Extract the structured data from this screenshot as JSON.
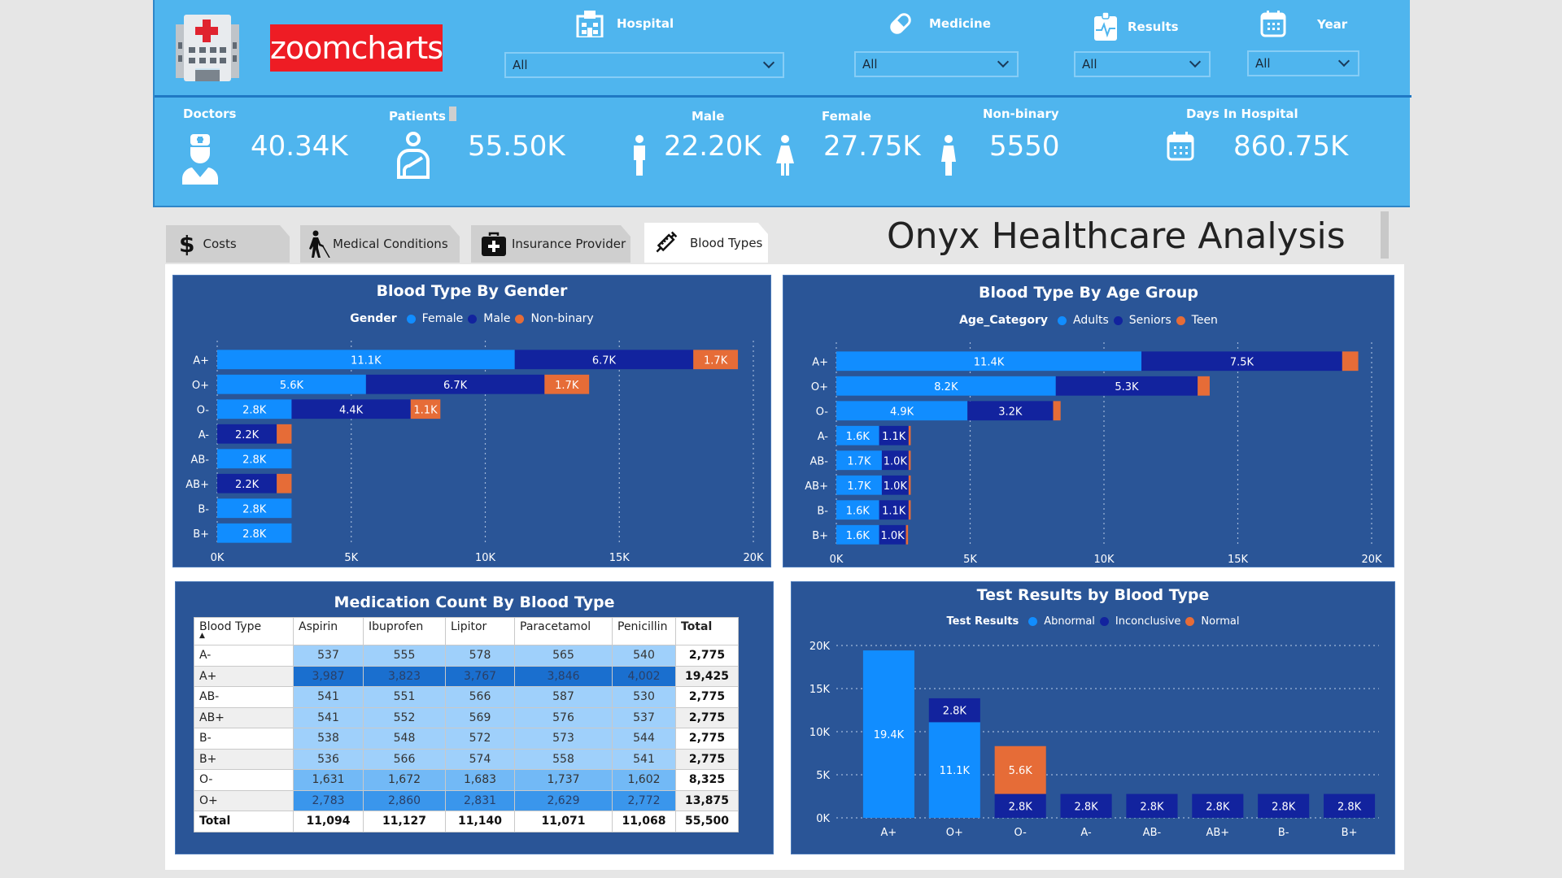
{
  "header": {
    "logo_text": "zoomcharts",
    "filters": [
      {
        "label": "Hospital",
        "icon": "hospital-icon",
        "value": "All"
      },
      {
        "label": "Medicine",
        "icon": "pill-icon",
        "value": "All"
      },
      {
        "label": "Results",
        "icon": "clipboard-pulse-icon",
        "value": "All"
      },
      {
        "label": "Year",
        "icon": "calendar-icon",
        "value": "All"
      }
    ],
    "kpis": {
      "doctors": {
        "label": "Doctors",
        "value": "40.34K"
      },
      "patients": {
        "label": "Patients",
        "value": "55.50K"
      },
      "male": {
        "label": "Male",
        "value": "22.20K"
      },
      "female": {
        "label": "Female",
        "value": "27.75K"
      },
      "nonbinary": {
        "label": "Non-binary",
        "value": "5550"
      },
      "days": {
        "label": "Days In Hospital",
        "value": "860.75K"
      }
    }
  },
  "tabs": [
    {
      "label": "Costs",
      "icon": "dollar-icon",
      "active": false
    },
    {
      "label": "Medical Conditions",
      "icon": "person-with-cane-icon",
      "active": false
    },
    {
      "label": "Insurance Provider",
      "icon": "medical-bag-icon",
      "active": false
    },
    {
      "label": "Blood Types",
      "icon": "syringe-icon",
      "active": true
    }
  ],
  "page_title": "Onyx Healthcare Analysis",
  "colors": {
    "light_blue": "#118dff",
    "dark_blue": "#12239e",
    "orange": "#e66c37",
    "panel_bg": "#2a5597",
    "header_bg": "#4fb5ee"
  },
  "chart_data": [
    {
      "type": "bar",
      "orientation": "horizontal-stacked",
      "title": "Blood Type By Gender",
      "legend_title": "Gender",
      "legend_position": "top-center",
      "categories": [
        "A+",
        "O+",
        "O-",
        "A-",
        "AB-",
        "AB+",
        "B-",
        "B+"
      ],
      "series": [
        {
          "name": "Female",
          "color": "#118dff",
          "values": [
            11100,
            5550,
            2775,
            0,
            2775,
            0,
            2775,
            2775
          ],
          "labels": [
            "11.1K",
            "5.6K",
            "2.8K",
            "",
            "2.8K",
            "",
            "2.8K",
            "2.8K"
          ]
        },
        {
          "name": "Male",
          "color": "#12239e",
          "values": [
            6660,
            6660,
            4440,
            2220,
            0,
            2220,
            0,
            0
          ],
          "labels": [
            "6.7K",
            "6.7K",
            "4.4K",
            "2.2K",
            "",
            "2.2K",
            "",
            ""
          ]
        },
        {
          "name": "Non-binary",
          "color": "#e66c37",
          "values": [
            1665,
            1665,
            1110,
            555,
            0,
            555,
            0,
            0
          ],
          "labels": [
            "1.7K",
            "1.7K",
            "1.1K",
            "",
            "",
            "",
            "",
            ""
          ]
        }
      ],
      "xlim": [
        0,
        20000
      ],
      "xticks": [
        "0K",
        "5K",
        "10K",
        "15K",
        "20K"
      ],
      "grid": true
    },
    {
      "type": "bar",
      "orientation": "horizontal-stacked",
      "title": "Blood Type By Age Group",
      "legend_title": "Age_Category",
      "legend_position": "top-center",
      "categories": [
        "A+",
        "O+",
        "O-",
        "A-",
        "AB-",
        "AB+",
        "B-",
        "B+"
      ],
      "series": [
        {
          "name": "Adults",
          "color": "#118dff",
          "values": [
            11400,
            8200,
            4900,
            1600,
            1700,
            1700,
            1600,
            1600
          ],
          "labels": [
            "11.4K",
            "8.2K",
            "4.9K",
            "1.6K",
            "1.7K",
            "1.7K",
            "1.6K",
            "1.6K"
          ]
        },
        {
          "name": "Seniors",
          "color": "#12239e",
          "values": [
            7500,
            5300,
            3200,
            1100,
            1000,
            1000,
            1100,
            1000
          ],
          "labels": [
            "7.5K",
            "5.3K",
            "3.2K",
            "1.1K",
            "1.0K",
            "1.0K",
            "1.1K",
            "1.0K"
          ]
        },
        {
          "name": "Teen",
          "color": "#e66c37",
          "values": [
            600,
            450,
            280,
            80,
            80,
            80,
            80,
            80
          ],
          "labels": [
            "",
            "",
            "",
            "",
            "",
            "",
            "",
            ""
          ]
        }
      ],
      "xlim": [
        0,
        20000
      ],
      "xticks": [
        "0K",
        "5K",
        "10K",
        "15K",
        "20K"
      ],
      "grid": true
    },
    {
      "type": "table",
      "title": "Medication Count By Blood Type",
      "columns": [
        "Blood Type",
        "Aspirin",
        "Ibuprofen",
        "Lipitor",
        "Paracetamol",
        "Penicillin",
        "Total"
      ],
      "sort_indicator": "▲",
      "rows": [
        {
          "blood_type": "A-",
          "values": [
            "537",
            "555",
            "578",
            "565",
            "540"
          ],
          "total": "2,775",
          "shade": "#9fd0fb"
        },
        {
          "blood_type": "A+",
          "values": [
            "3,987",
            "3,823",
            "3,767",
            "3,846",
            "4,002"
          ],
          "total": "19,425",
          "shade": "#1a6fcf"
        },
        {
          "blood_type": "AB-",
          "values": [
            "541",
            "551",
            "566",
            "587",
            "530"
          ],
          "total": "2,775",
          "shade": "#9fd0fb"
        },
        {
          "blood_type": "AB+",
          "values": [
            "541",
            "552",
            "569",
            "576",
            "537"
          ],
          "total": "2,775",
          "shade": "#9fd0fb"
        },
        {
          "blood_type": "B-",
          "values": [
            "538",
            "548",
            "572",
            "573",
            "544"
          ],
          "total": "2,775",
          "shade": "#9fd0fb"
        },
        {
          "blood_type": "B+",
          "values": [
            "536",
            "566",
            "574",
            "558",
            "541"
          ],
          "total": "2,775",
          "shade": "#9fd0fb"
        },
        {
          "blood_type": "O-",
          "values": [
            "1,631",
            "1,672",
            "1,683",
            "1,737",
            "1,602"
          ],
          "total": "8,325",
          "shade": "#72b9f6"
        },
        {
          "blood_type": "O+",
          "values": [
            "2,783",
            "2,860",
            "2,831",
            "2,629",
            "2,772"
          ],
          "total": "13,875",
          "shade": "#3a96ec"
        }
      ],
      "totals": {
        "label": "Total",
        "values": [
          "11,094",
          "11,127",
          "11,140",
          "11,071",
          "11,068"
        ],
        "total": "55,500"
      }
    },
    {
      "type": "bar",
      "orientation": "vertical-stacked",
      "title": "Test Results by Blood Type",
      "legend_title": "Test Results",
      "legend_position": "top-center",
      "categories": [
        "A+",
        "O+",
        "O-",
        "A-",
        "AB-",
        "AB+",
        "B-",
        "B+"
      ],
      "series": [
        {
          "name": "Inconclusive",
          "color": "#12239e",
          "values": [
            0,
            2775,
            2775,
            2775,
            2775,
            2775,
            2775,
            2775
          ],
          "labels": [
            "",
            "2.8K",
            "2.8K",
            "2.8K",
            "2.8K",
            "2.8K",
            "2.8K",
            "2.8K"
          ]
        },
        {
          "name": "Abnormal",
          "color": "#118dff",
          "values": [
            19425,
            11100,
            0,
            0,
            0,
            0,
            0,
            0
          ],
          "labels": [
            "19.4K",
            "11.1K",
            "",
            "",
            "",
            "",
            "",
            ""
          ]
        },
        {
          "name": "Normal",
          "color": "#e66c37",
          "values": [
            0,
            0,
            5550,
            0,
            0,
            0,
            0,
            0
          ],
          "labels": [
            "",
            "",
            "5.6K",
            "",
            "",
            "",
            "",
            ""
          ]
        }
      ],
      "stack_order_note": "O+ shows Abnormal at bottom, Inconclusive on top",
      "ylim": [
        0,
        20000
      ],
      "yticks": [
        "0K",
        "5K",
        "10K",
        "15K",
        "20K"
      ],
      "legend_entries": [
        "Abnormal",
        "Inconclusive",
        "Normal"
      ],
      "grid": true
    }
  ]
}
